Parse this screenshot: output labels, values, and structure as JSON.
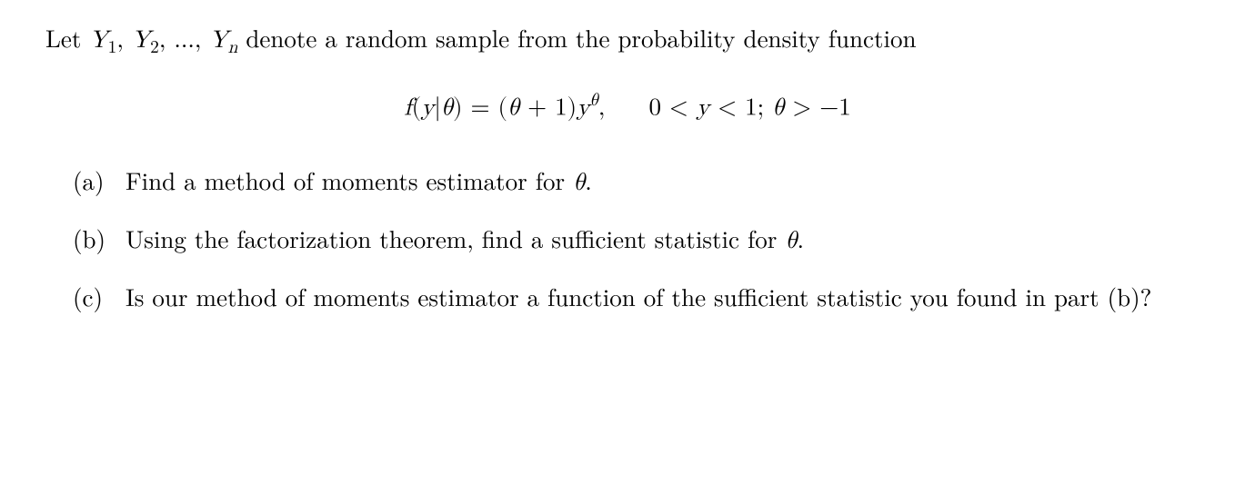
{
  "intro": {
    "pre": "Let ",
    "seq_y1": "Y",
    "seq_y1_sub": "1",
    "seq_sep1": ", ",
    "seq_y2": "Y",
    "seq_y2_sub": "2",
    "seq_sep2": ", ..., ",
    "seq_yn": "Y",
    "seq_yn_sub": "n",
    "post": " denote a random sample from the probability density function"
  },
  "equation": {
    "f": "f",
    "open": "(",
    "y": "y",
    "bar": "|",
    "theta1": "θ",
    "close": ")",
    "eq": " = ",
    "open2": "(",
    "theta2": "θ",
    "plus": " + ",
    "one": "1",
    "close2": ")",
    "y2": "y",
    "exp_theta": "θ",
    "comma": ",",
    "cond_zero": "0",
    "lt1": " < ",
    "cond_y": "y",
    "lt2": " < ",
    "cond_one": "1",
    "semicolon": "; ",
    "cond_theta": "θ",
    "gt": " > ",
    "neg1": "−1"
  },
  "items": {
    "a": {
      "label": "(a)",
      "pre": "Find a method of moments estimator for ",
      "theta": "θ",
      "post": "."
    },
    "b": {
      "label": "(b)",
      "pre": "Using the factorization theorem, find a sufficient statistic for ",
      "theta": "θ",
      "post": "."
    },
    "c": {
      "label": "(c)",
      "text": "Is our method of moments estimator a function of the sufficient statistic you found in part (b)?"
    }
  }
}
